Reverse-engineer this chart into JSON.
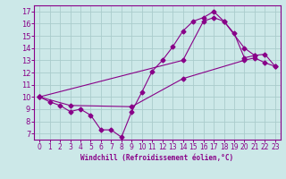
{
  "xlabel": "Windchill (Refroidissement éolien,°C)",
  "bg_color": "#cce8e8",
  "line_color": "#880088",
  "grid_color": "#aacccc",
  "ylim": [
    6.5,
    17.5
  ],
  "xlim": [
    -0.5,
    23.5
  ],
  "yticks": [
    7,
    8,
    9,
    10,
    11,
    12,
    13,
    14,
    15,
    16,
    17
  ],
  "xticks": [
    0,
    1,
    2,
    3,
    4,
    5,
    6,
    7,
    8,
    9,
    10,
    11,
    12,
    13,
    14,
    15,
    16,
    17,
    18,
    19,
    20,
    21,
    22,
    23
  ],
  "line1_x": [
    0,
    1,
    2,
    3,
    4,
    5,
    6,
    7,
    8,
    9,
    10,
    11,
    12,
    13,
    14,
    15,
    16,
    17,
    18,
    19,
    20,
    21
  ],
  "line1_y": [
    10.0,
    9.6,
    9.3,
    8.8,
    9.0,
    8.5,
    7.3,
    7.3,
    6.7,
    8.8,
    10.4,
    12.1,
    13.0,
    14.1,
    15.4,
    16.2,
    16.5,
    17.0,
    16.2,
    15.2,
    13.2,
    13.4
  ],
  "line2_x": [
    0,
    3,
    9,
    14,
    20,
    21,
    22,
    23
  ],
  "line2_y": [
    10.0,
    9.3,
    9.2,
    11.5,
    13.0,
    13.2,
    12.8,
    12.5
  ],
  "line3_x": [
    0,
    14,
    16,
    17,
    18,
    20,
    21,
    22,
    23
  ],
  "line3_y": [
    10.0,
    13.0,
    16.2,
    16.5,
    16.2,
    14.0,
    13.4,
    13.5,
    12.5
  ]
}
